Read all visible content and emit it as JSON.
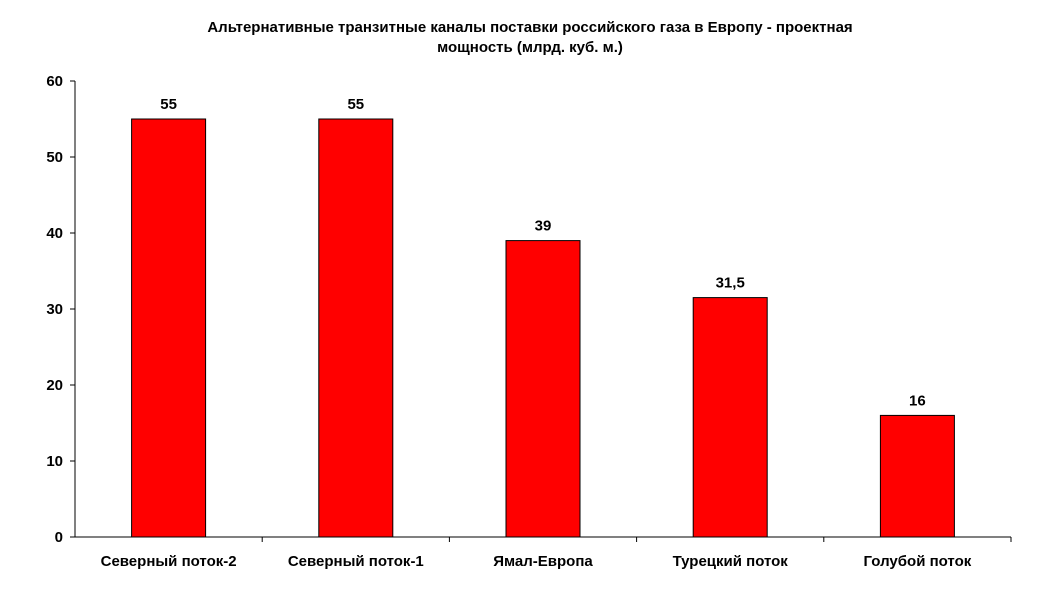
{
  "chart_data": {
    "type": "bar",
    "title_lines": [
      "Альтернативные транзитные каналы поставки российского газа в Европу - проектная",
      "мощность (млрд. куб. м.)"
    ],
    "categories": [
      "Северный поток-2",
      "Северный поток-1",
      "Ямал-Европа",
      "Турецкий поток",
      "Голубой поток"
    ],
    "values": [
      55,
      55,
      39,
      31.5,
      16
    ],
    "data_labels": [
      "55",
      "55",
      "39",
      "31,5",
      "16"
    ],
    "xlabel": "",
    "ylabel": "",
    "ylim": [
      0,
      60
    ],
    "yticks": [
      0,
      10,
      20,
      30,
      40,
      50,
      60
    ],
    "grid": false,
    "legend": "none",
    "bar_color": "#ff0000",
    "bar_edge_color": "#000000"
  }
}
